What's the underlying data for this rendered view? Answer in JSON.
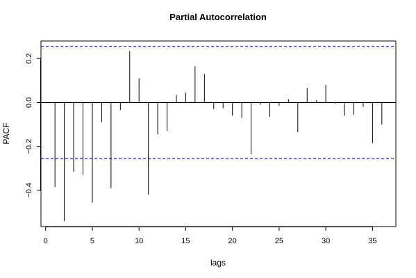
{
  "chart_data": {
    "type": "bar",
    "title": "Partial Autocorrelation",
    "xlabel": "lags",
    "ylabel": "PACF",
    "x": [
      1,
      2,
      3,
      4,
      5,
      6,
      7,
      8,
      9,
      10,
      11,
      12,
      13,
      14,
      15,
      16,
      17,
      18,
      19,
      20,
      21,
      22,
      23,
      24,
      25,
      26,
      27,
      28,
      29,
      30,
      31,
      32,
      33,
      34,
      35,
      36
    ],
    "values": [
      -0.385,
      -0.54,
      -0.315,
      -0.33,
      -0.455,
      -0.09,
      -0.39,
      -0.035,
      0.235,
      0.11,
      -0.42,
      -0.145,
      -0.13,
      0.035,
      0.045,
      0.165,
      0.13,
      -0.03,
      -0.025,
      -0.06,
      -0.07,
      -0.235,
      -0.01,
      -0.065,
      -0.015,
      0.015,
      -0.135,
      0.065,
      0.01,
      0.08,
      -0.005,
      -0.06,
      -0.055,
      -0.02,
      -0.185,
      -0.1
    ],
    "confidence_bound": 0.256,
    "xlim": [
      -0.5,
      37.5
    ],
    "ylim": [
      -0.565,
      0.28
    ],
    "x_ticks": [
      0,
      5,
      10,
      15,
      20,
      25,
      30,
      35
    ],
    "y_ticks": [
      -0.4,
      -0.2,
      0.0,
      0.2
    ],
    "y_tick_labels": [
      "−0.4",
      "−0.2",
      "0.0",
      "0.2"
    ],
    "x_tick_labels": [
      "0",
      "5",
      "10",
      "15",
      "20",
      "25",
      "30",
      "35"
    ],
    "grid": false,
    "colors": {
      "bar": "#000000",
      "zero_line": "#000000",
      "confidence_line": "#0000ff",
      "frame": "#000000"
    }
  }
}
